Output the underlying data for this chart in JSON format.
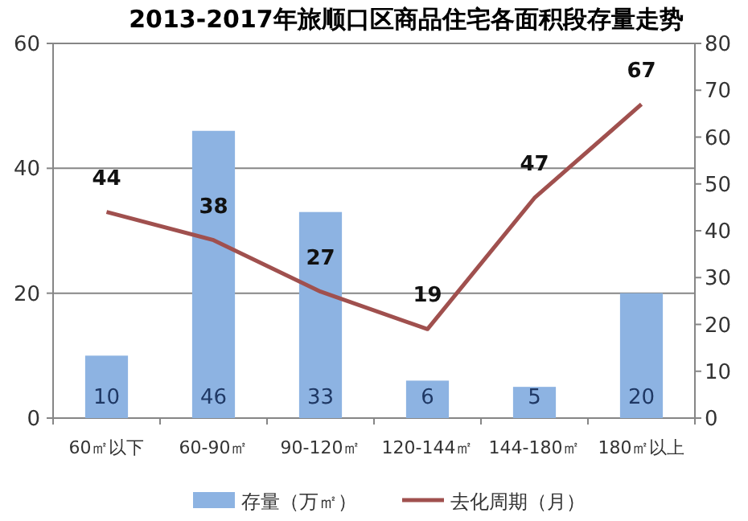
{
  "chart_data": {
    "type": "bar",
    "title": "2013-2017年旅顺口区商品住宅各面积段存量走势",
    "categories": [
      "60㎡以下",
      "60-90㎡",
      "90-120㎡",
      "120-144㎡",
      "144-180㎡",
      "180㎡以上"
    ],
    "series": [
      {
        "name": "存量（万㎡）",
        "color": "#8db3e2",
        "values": [
          10,
          46,
          33,
          6,
          5,
          20
        ]
      },
      {
        "name": "去化周期（月）",
        "type": "line",
        "axis": "y2",
        "color": "#a0504e",
        "values": [
          44,
          38,
          27,
          19,
          47,
          67
        ]
      }
    ],
    "ylim": [
      0,
      60
    ],
    "yticks": [
      0,
      20,
      40,
      60
    ],
    "y2lim": [
      0,
      80
    ],
    "y2ticks": [
      0,
      10,
      20,
      30,
      40,
      50,
      60,
      70,
      80
    ],
    "grid": "y",
    "legend": "bottom",
    "data_labels": true,
    "marker": "none"
  }
}
